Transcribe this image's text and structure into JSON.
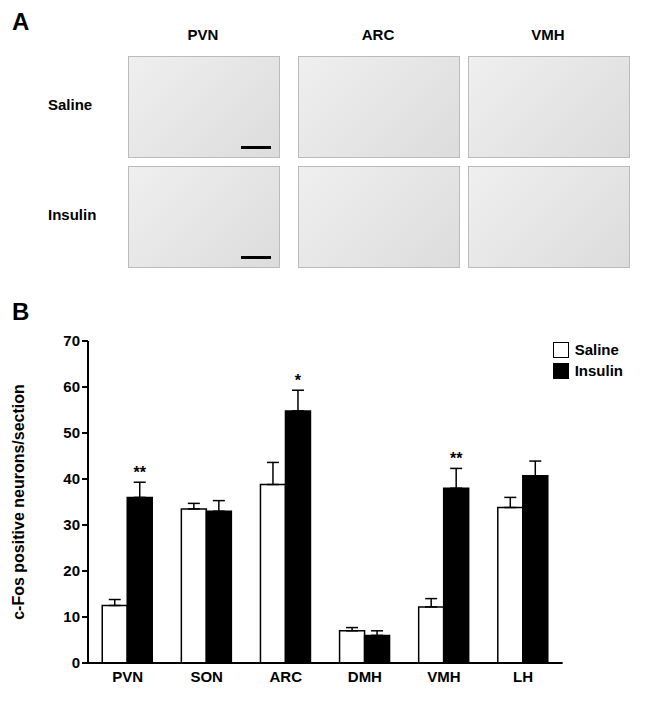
{
  "panel_a": {
    "label": "A",
    "columns": [
      "PVN",
      "ARC",
      "VMH"
    ],
    "rows": [
      "Saline",
      "Insulin"
    ]
  },
  "chart_data": {
    "panel_label": "B",
    "type": "bar",
    "categories": [
      "PVN",
      "SON",
      "ARC",
      "DMH",
      "VMH",
      "LH"
    ],
    "ylabel": "c-Fos positive neurons/section",
    "ylim": [
      0,
      70
    ],
    "yticks": [
      0,
      10,
      20,
      30,
      40,
      50,
      60,
      70
    ],
    "grid": false,
    "legend": "upper right",
    "series": [
      {
        "name": "Saline",
        "color": "#ffffff",
        "values": [
          12.5,
          33.5,
          38.8,
          7,
          12.2,
          33.8
        ],
        "errors": [
          1.3,
          1.2,
          4.8,
          0.7,
          1.8,
          2.2
        ],
        "significance": [
          null,
          null,
          null,
          null,
          null,
          null
        ]
      },
      {
        "name": "Insulin",
        "color": "#000000",
        "values": [
          36,
          33,
          54.8,
          6,
          38,
          40.7
        ],
        "errors": [
          3.3,
          2.3,
          4.5,
          1,
          4.3,
          3.2
        ],
        "significance": [
          "**",
          null,
          "*",
          null,
          "**",
          null
        ]
      }
    ]
  }
}
